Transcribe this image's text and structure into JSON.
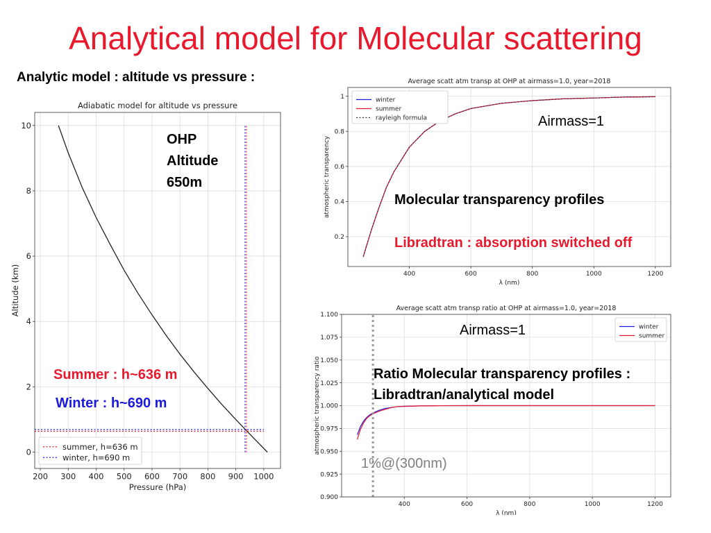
{
  "slide": {
    "title": "Analytical model for Molecular scattering",
    "subtitle": "Analytic model  : altitude vs pressure :",
    "annotations": {
      "ohp_line1": "OHP",
      "ohp_line2": "Altitude",
      "ohp_line3": "650m",
      "summer": "Summer : h~636 m",
      "winter": "Winter : h~690 m",
      "airmass_top": "Airmass=1",
      "molecular": "Molecular transparency profiles",
      "libradtran": "Libradtran : absorption switched off",
      "airmass_bottom": "Airmass=1",
      "ratio_line1": "Ratio Molecular transparency profiles :",
      "ratio_line2": "Libradtran/analytical model",
      "one_percent": "1%@(300nm)"
    }
  },
  "chart_data": [
    {
      "type": "line",
      "title": "Adiabatic model for altitude vs pressure",
      "xlabel": "Pressure (hPa)",
      "ylabel": "Altitude (km)",
      "xlim": [
        180,
        1060
      ],
      "ylim": [
        -0.5,
        10.4
      ],
      "xticks": [
        200,
        300,
        400,
        500,
        600,
        700,
        800,
        900,
        1000
      ],
      "yticks": [
        0,
        2,
        4,
        6,
        8,
        10
      ],
      "grid": true,
      "legend": "lower-left",
      "series": [
        {
          "name": "",
          "color": "#222222",
          "style": "solid",
          "x": [
            265,
            300,
            350,
            400,
            450,
            500,
            550,
            600,
            650,
            700,
            750,
            800,
            850,
            900,
            950,
            1013
          ],
          "y": [
            10.0,
            9.16,
            8.1,
            7.18,
            6.36,
            5.57,
            4.86,
            4.2,
            3.58,
            3.0,
            2.46,
            1.95,
            1.46,
            1.0,
            0.55,
            0.0
          ]
        },
        {
          "name": "summer, h=636 m",
          "color": "#e8192c",
          "style": "dotted",
          "x": [
            180,
            1000
          ],
          "y": [
            0.636,
            0.636
          ]
        },
        {
          "name": "winter, h=690 m",
          "color": "#1a1adc",
          "style": "dotted",
          "x": [
            180,
            1000
          ],
          "y": [
            0.69,
            0.69
          ]
        }
      ],
      "vlines": [
        {
          "x": 933,
          "color": "#1a1adc",
          "style": "dotted",
          "y0": 0,
          "y1": 10
        },
        {
          "x": 938,
          "color": "#e8192c",
          "style": "dotted",
          "y0": 0,
          "y1": 10
        }
      ]
    },
    {
      "type": "line",
      "title": "Average scatt atm transp at OHP at airmass=1.0, year=2018",
      "xlabel": "λ (nm)",
      "ylabel": "atmospheric transparency",
      "xlim": [
        200,
        1250
      ],
      "ylim": [
        0.03,
        1.05
      ],
      "xticks": [
        400,
        600,
        800,
        1000,
        1200
      ],
      "yticks": [
        0.2,
        0.4,
        0.6,
        0.8,
        1.0
      ],
      "grid": true,
      "legend": "top-left",
      "series": [
        {
          "name": "winter",
          "color": "#1a1adc",
          "style": "solid",
          "x": [
            250,
            275,
            300,
            325,
            350,
            375,
            400,
            450,
            500,
            550,
            600,
            700,
            800,
            900,
            1000,
            1100,
            1200
          ],
          "y": [
            0.085,
            0.23,
            0.36,
            0.48,
            0.57,
            0.64,
            0.71,
            0.8,
            0.86,
            0.9,
            0.93,
            0.96,
            0.975,
            0.985,
            0.99,
            0.995,
            0.997
          ]
        },
        {
          "name": "summer",
          "color": "#e8192c",
          "style": "solid",
          "x": [
            250,
            275,
            300,
            325,
            350,
            375,
            400,
            450,
            500,
            550,
            600,
            700,
            800,
            900,
            1000,
            1100,
            1200
          ],
          "y": [
            0.085,
            0.23,
            0.36,
            0.48,
            0.57,
            0.64,
            0.71,
            0.8,
            0.86,
            0.9,
            0.93,
            0.96,
            0.975,
            0.985,
            0.99,
            0.995,
            0.997
          ]
        },
        {
          "name": "rayleigh formula",
          "color": "#333333",
          "style": "dotted",
          "x": [
            250,
            275,
            300,
            325,
            350,
            375,
            400,
            450,
            500,
            550,
            600,
            700,
            800,
            900,
            1000,
            1100,
            1200
          ],
          "y": [
            0.085,
            0.23,
            0.36,
            0.48,
            0.57,
            0.64,
            0.71,
            0.8,
            0.86,
            0.9,
            0.93,
            0.96,
            0.975,
            0.985,
            0.99,
            0.995,
            0.997
          ]
        }
      ]
    },
    {
      "type": "line",
      "title": "Average scatt atm transp ratio at OHP at airmass=1.0, year=2018",
      "xlabel": "λ (nm)",
      "ylabel": "atmospheric transparency ratio",
      "xlim": [
        200,
        1250
      ],
      "ylim": [
        0.9,
        1.1
      ],
      "xticks": [
        400,
        600,
        800,
        1000,
        1200
      ],
      "yticks": [
        0.9,
        0.925,
        0.95,
        0.975,
        1.0,
        1.025,
        1.05,
        1.075,
        1.1
      ],
      "ytick_labels": [
        "0.900",
        "0.925",
        "0.950",
        "0.975",
        "1.000",
        "1.025",
        "1.050",
        "1.075",
        "1.100"
      ],
      "grid": true,
      "legend": "top-right",
      "series": [
        {
          "name": "winter",
          "color": "#1a1adc",
          "style": "solid",
          "x": [
            250,
            260,
            270,
            280,
            290,
            300,
            320,
            340,
            360,
            380,
            400,
            450,
            500,
            600,
            700,
            800,
            1000,
            1200
          ],
          "y": [
            0.968,
            0.977,
            0.983,
            0.987,
            0.99,
            0.992,
            0.995,
            0.997,
            0.998,
            0.999,
            0.9993,
            0.9997,
            0.9999,
            1.0,
            1.0,
            1.0,
            1.0,
            1.0
          ]
        },
        {
          "name": "summer",
          "color": "#e8192c",
          "style": "solid",
          "x": [
            250,
            260,
            270,
            280,
            290,
            300,
            320,
            340,
            360,
            380,
            400,
            450,
            500,
            600,
            700,
            800,
            1000,
            1200
          ],
          "y": [
            0.963,
            0.974,
            0.981,
            0.986,
            0.989,
            0.991,
            0.994,
            0.996,
            0.998,
            0.999,
            0.9992,
            0.9997,
            0.9999,
            1.0,
            1.0,
            1.0,
            1.0,
            1.0
          ]
        }
      ],
      "vlines": [
        {
          "x": 300,
          "color": "#999999",
          "style": "dotted",
          "y0": 0.9,
          "y1": 1.1
        }
      ]
    }
  ]
}
